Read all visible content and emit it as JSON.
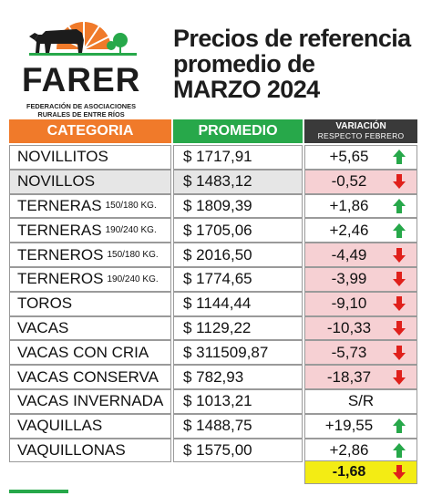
{
  "header": {
    "logo_text": "FARER",
    "logo_subtitle_line1": "FEDERACIÓN DE ASOCIACIONES",
    "logo_subtitle_line2": "RURALES DE ENTRE RÍOS",
    "title_line1": "Precios de referencia",
    "title_line2": "promedio de",
    "title_line3": "MARZO 2024"
  },
  "columns": {
    "categoria": "CATEGORIA",
    "promedio": "PROMEDIO",
    "variacion": "VARIACIÓN",
    "variacion_sub": "RESPECTO FEBRERO"
  },
  "rows": [
    {
      "name": "NOVILLITOS",
      "sub": "",
      "price": "$ 1717,91",
      "variation": "+5,65",
      "trend": "up"
    },
    {
      "name": "NOVILLOS",
      "sub": "",
      "price": "$ 1483,12",
      "variation": "-0,52",
      "trend": "down"
    },
    {
      "name": "TERNERAS",
      "sub": "150/180 KG.",
      "price": "$ 1809,39",
      "variation": "+1,86",
      "trend": "up"
    },
    {
      "name": "TERNERAS",
      "sub": "190/240 KG.",
      "price": "$ 1705,06",
      "variation": "+2,46",
      "trend": "up"
    },
    {
      "name": "TERNEROS",
      "sub": "150/180 KG.",
      "price": "$ 2016,50",
      "variation": "-4,49",
      "trend": "down"
    },
    {
      "name": "TERNEROS",
      "sub": "190/240 KG.",
      "price": "$ 1774,65",
      "variation": "-3,99",
      "trend": "down"
    },
    {
      "name": "TOROS",
      "sub": "",
      "price": "$ 1144,44",
      "variation": "-9,10",
      "trend": "down"
    },
    {
      "name": "VACAS",
      "sub": "",
      "price": "$ 1129,22",
      "variation": "-10,33",
      "trend": "down"
    },
    {
      "name": "VACAS CON CRIA",
      "sub": "",
      "price": "$ 311509,87",
      "variation": "-5,73",
      "trend": "down"
    },
    {
      "name": "VACAS CONSERVA",
      "sub": "",
      "price": "$ 782,93",
      "variation": "-18,37",
      "trend": "down"
    },
    {
      "name": "VACAS INVERNADA",
      "sub": "",
      "price": "$ 1013,21",
      "variation": "S/R",
      "trend": "none"
    },
    {
      "name": "VAQUILLAS",
      "sub": "",
      "price": "$ 1488,75",
      "variation": "+19,55",
      "trend": "up"
    },
    {
      "name": "VAQUILLONAS",
      "sub": "",
      "price": "$ 1575,00",
      "variation": "+2,86",
      "trend": "up"
    }
  ],
  "total": {
    "variation": "-1,68",
    "trend": "down"
  },
  "colors": {
    "categoria_header": "#f07a2a",
    "promedio_header": "#27a84a",
    "variacion_header": "#3a3a3a",
    "negative_fill": "#f6d0d3",
    "up_arrow": "#27a84a",
    "down_arrow": "#e0201b",
    "total_fill": "#f3ec14"
  }
}
